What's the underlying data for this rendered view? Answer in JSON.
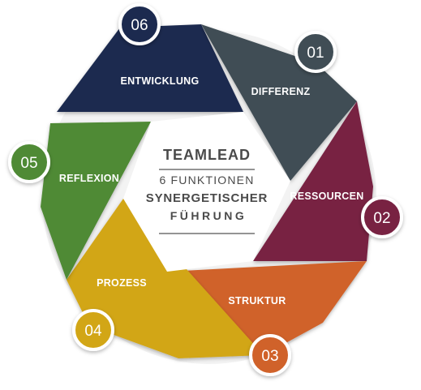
{
  "center": {
    "title": "TEAMLEAD",
    "line1": "6 FUNKTIONEN",
    "line2": "SYNERGETISCHER",
    "line3": "FÜHRUNG"
  },
  "segments": [
    {
      "number": "01",
      "label": "DIFFERENZ",
      "color": "#3f4d55"
    },
    {
      "number": "02",
      "label": "RESSOURCEN",
      "color": "#782043"
    },
    {
      "number": "03",
      "label": "STRUKTUR",
      "color": "#d0622a"
    },
    {
      "number": "04",
      "label": "PROZESS",
      "color": "#d2a617"
    },
    {
      "number": "05",
      "label": "REFLEXION",
      "color": "#4f8a35"
    },
    {
      "number": "06",
      "label": "ENTWICKLUNG",
      "color": "#1b2a4f"
    }
  ]
}
